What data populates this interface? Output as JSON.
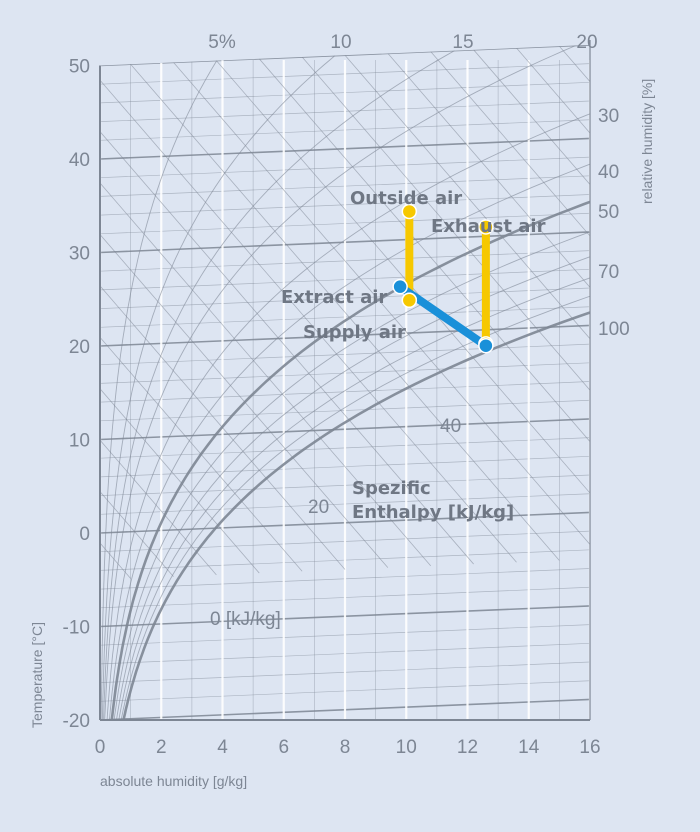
{
  "chart_data": {
    "type": "line",
    "title": "",
    "xlabel": "absolute humidity [g/kg]",
    "ylabel": "Temperature [°C]",
    "rh_axis_label": "relative humidity [%]",
    "xlim": [
      0,
      16
    ],
    "ylim": [
      -20,
      50
    ],
    "x_ticks": [
      "0",
      "2",
      "4",
      "6",
      "8",
      "10",
      "12",
      "14",
      "16"
    ],
    "y_ticks": [
      "-20",
      "-10",
      "0",
      "10",
      "20",
      "30",
      "40",
      "50"
    ],
    "top_ticks": [
      "5%",
      "10",
      "15",
      "20"
    ],
    "rh_ticks": [
      "30",
      "40",
      "50",
      "70",
      "100"
    ],
    "enthalpy_labels": [
      "0 [kJ/kg]",
      "20",
      "40"
    ],
    "enthalpy_title": [
      "Spezific",
      "Enthalpy [kJ/kg]"
    ],
    "colors": {
      "background": "#dde5f2",
      "grid": "#7d8694",
      "outside_exhaust_line": "#f6c800",
      "supply_extract_line": "#1a90d9",
      "point_outline": "#ffffff"
    },
    "series": [
      {
        "name": "Outside air",
        "label": "Outside air",
        "color": "#f6c800",
        "points": [
          {
            "x": 10.1,
            "y": 33
          },
          {
            "x": 10.1,
            "y": 23.5
          }
        ]
      },
      {
        "name": "Exhaust air",
        "label": "Exhaust air",
        "color": "#f6c800",
        "points": [
          {
            "x": 12.6,
            "y": 31
          },
          {
            "x": 12.6,
            "y": 18.5
          }
        ]
      },
      {
        "name": "Extract air",
        "label": "Extract air",
        "color": "#1a90d9",
        "points": [
          {
            "x": 9.8,
            "y": 25
          },
          {
            "x": 12.6,
            "y": 18.3
          }
        ]
      },
      {
        "name": "Supply air",
        "label": "Supply air",
        "color": "#f6c800",
        "points": [
          {
            "x": 10.1,
            "y": 23.5
          }
        ]
      }
    ]
  }
}
